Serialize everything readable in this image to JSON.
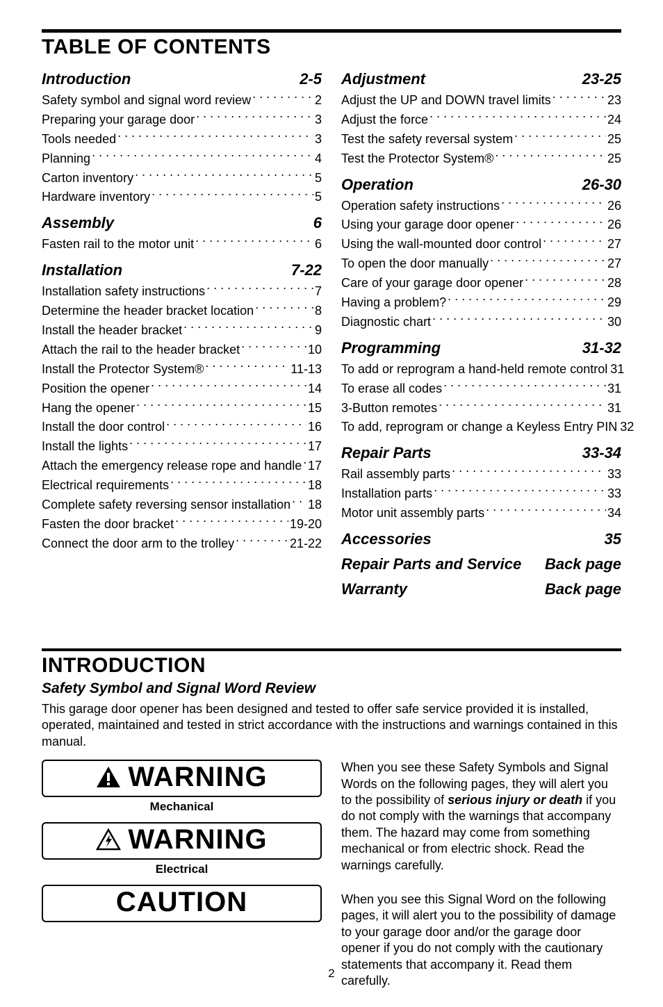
{
  "toc_title": "TABLE OF CONTENTS",
  "page_number": "2",
  "left_sections": [
    {
      "name": "Introduction",
      "pages": "2-5",
      "items": [
        {
          "label": "Safety symbol and signal word review",
          "pg": "2"
        },
        {
          "label": "Preparing your garage door",
          "pg": "3"
        },
        {
          "label": "Tools needed",
          "pg": "3"
        },
        {
          "label": "Planning",
          "pg": "4"
        },
        {
          "label": "Carton inventory",
          "pg": "5"
        },
        {
          "label": "Hardware inventory",
          "pg": "5"
        }
      ]
    },
    {
      "name": "Assembly",
      "pages": "6",
      "items": [
        {
          "label": "Fasten rail to the motor unit",
          "pg": "6"
        }
      ]
    },
    {
      "name": "Installation",
      "pages": "7-22",
      "items": [
        {
          "label": "Installation safety instructions",
          "pg": "7"
        },
        {
          "label": "Determine the header bracket location",
          "pg": "8"
        },
        {
          "label": "Install the header bracket",
          "pg": "9"
        },
        {
          "label": "Attach the rail to the header bracket",
          "pg": "10"
        },
        {
          "label": "Install the Protector System®",
          "pg": "11-13"
        },
        {
          "label": "Position the opener",
          "pg": "14"
        },
        {
          "label": "Hang the opener",
          "pg": "15"
        },
        {
          "label": "Install the door control",
          "pg": "16"
        },
        {
          "label": "Install the lights",
          "pg": "17"
        },
        {
          "label": "Attach the emergency release rope and handle",
          "pg": "17"
        },
        {
          "label": "Electrical requirements",
          "pg": "18"
        },
        {
          "label": "Complete safety reversing sensor installation",
          "pg": "18"
        },
        {
          "label": "Fasten the door bracket",
          "pg": "19-20"
        },
        {
          "label": "Connect the door arm to the trolley",
          "pg": "21-22"
        }
      ]
    }
  ],
  "right_sections": [
    {
      "name": "Adjustment",
      "pages": "23-25",
      "items": [
        {
          "label": "Adjust the UP and DOWN travel limits",
          "pg": "23"
        },
        {
          "label": "Adjust the force",
          "pg": "24"
        },
        {
          "label": "Test the safety reversal system",
          "pg": "25"
        },
        {
          "label": "Test the Protector System®",
          "pg": "25"
        }
      ]
    },
    {
      "name": "Operation",
      "pages": "26-30",
      "items": [
        {
          "label": "Operation safety instructions",
          "pg": "26"
        },
        {
          "label": "Using your garage door opener",
          "pg": "26"
        },
        {
          "label": "Using the wall-mounted door control",
          "pg": "27"
        },
        {
          "label": "To open the door manually",
          "pg": "27"
        },
        {
          "label": "Care of your garage door opener",
          "pg": "28"
        },
        {
          "label": "Having a problem?",
          "pg": "29"
        },
        {
          "label": "Diagnostic chart",
          "pg": "30"
        }
      ]
    },
    {
      "name": "Programming",
      "pages": "31-32",
      "items": [
        {
          "label": "To add or reprogram a hand-held remote control",
          "pg": "31"
        },
        {
          "label": "To erase all codes",
          "pg": "31"
        },
        {
          "label": "3-Button remotes",
          "pg": "31"
        },
        {
          "label": "To add, reprogram or change a Keyless Entry PIN",
          "pg": "32"
        }
      ]
    },
    {
      "name": "Repair Parts",
      "pages": "33-34",
      "items": [
        {
          "label": "Rail assembly parts",
          "pg": "33"
        },
        {
          "label": "Installation parts",
          "pg": "33"
        },
        {
          "label": "Motor unit assembly parts",
          "pg": "34"
        }
      ]
    },
    {
      "name": "Accessories",
      "pages": "35",
      "items": []
    },
    {
      "name": "Repair Parts and Service",
      "pages": "Back page",
      "items": []
    },
    {
      "name": "Warranty",
      "pages": "Back page",
      "items": []
    }
  ],
  "intro": {
    "title": "INTRODUCTION",
    "subtitle": "Safety Symbol and Signal Word Review",
    "lead": "This garage door opener has been designed and tested to offer safe service provided it is installed, operated, maintained and tested in strict accordance with the instructions and warnings contained in this manual.",
    "signs": [
      {
        "word": "WARNING",
        "icon": "alert-solid",
        "caption": "Mechanical"
      },
      {
        "word": "WARNING",
        "icon": "alert-bolt",
        "caption": "Electrical"
      },
      {
        "word": "CAUTION",
        "icon": "none",
        "caption": ""
      }
    ],
    "right_paras": [
      {
        "pre": "When you see these Safety Symbols and Signal Words on the following pages, they will alert you to the possibility of ",
        "bi": "serious injury or death",
        "post": " if you do not comply with the warnings that accompany them. The hazard may come from something mechanical or from electric shock. Read the warnings carefully."
      },
      {
        "pre": "When you see this Signal Word on the following pages, it will alert you to the possibility of damage to your garage door and/or the garage door opener if you do not comply with the cautionary statements that accompany it. Read them carefully.",
        "bi": "",
        "post": ""
      }
    ]
  }
}
